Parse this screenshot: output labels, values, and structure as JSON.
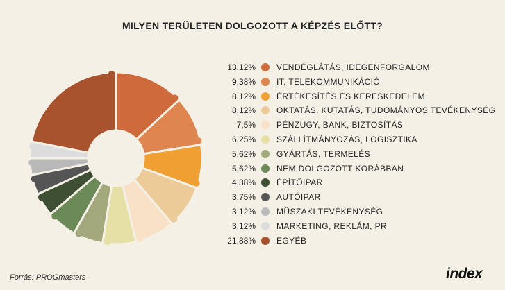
{
  "title": "MILYEN TERÜLETEN DOLGOZOTT A KÉPZÉS ELŐTT?",
  "source": "Forrás: PROGmasters",
  "brand": "index",
  "chart_data": {
    "type": "pie",
    "title": "MILYEN TERÜLETEN DOLGOZOTT A KÉPZÉS ELŐTT?",
    "slices": [
      {
        "label": "VENDÉGLÁTÁS, IDEGENFORGALOM",
        "value": 13.12,
        "pct_label": "13,12%",
        "color": "#cf6a3c"
      },
      {
        "label": "IT, TELEKOMMUNIKÁCIÓ",
        "value": 9.38,
        "pct_label": "9,38%",
        "color": "#de8550"
      },
      {
        "label": "ÉRTÉKESÍTÉS ÉS KERESKEDELEM",
        "value": 8.12,
        "pct_label": "8,12%",
        "color": "#f0a033"
      },
      {
        "label": "OKTATÁS, KUTATÁS, TUDOMÁNYOS TEVÉKENYSÉG",
        "value": 8.12,
        "pct_label": "8,12%",
        "color": "#edcb98"
      },
      {
        "label": "PÉNZÜGY, BANK, BIZTOSÍTÁS",
        "value": 7.5,
        "pct_label": "7,5%",
        "color": "#f8e1c6"
      },
      {
        "label": "SZÁLLÍTMÁNYOZÁS, LOGISZTIKA",
        "value": 6.25,
        "pct_label": "6,25%",
        "color": "#e6e0a6"
      },
      {
        "label": "GYÁRTÁS, TERMELÉS",
        "value": 5.62,
        "pct_label": "5,62%",
        "color": "#a3a87d"
      },
      {
        "label": "NEM DOLGOZOTT KORÁBBAN",
        "value": 5.62,
        "pct_label": "5,62%",
        "color": "#6b8a58"
      },
      {
        "label": "ÉPÍTŐIPAR",
        "value": 4.38,
        "pct_label": "4,38%",
        "color": "#3e4f34"
      },
      {
        "label": "AUTÓIPAR",
        "value": 3.75,
        "pct_label": "3,75%",
        "color": "#555555"
      },
      {
        "label": "MŰSZAKI TEVÉKENYSÉG",
        "value": 3.12,
        "pct_label": "3,12%",
        "color": "#b9b9b9"
      },
      {
        "label": "MARKETING, REKLÁM, PR",
        "value": 3.12,
        "pct_label": "3,12%",
        "color": "#dcdcdc"
      },
      {
        "label": "EGYÉB",
        "value": 21.88,
        "pct_label": "21,88%",
        "color": "#a9532e"
      }
    ]
  }
}
